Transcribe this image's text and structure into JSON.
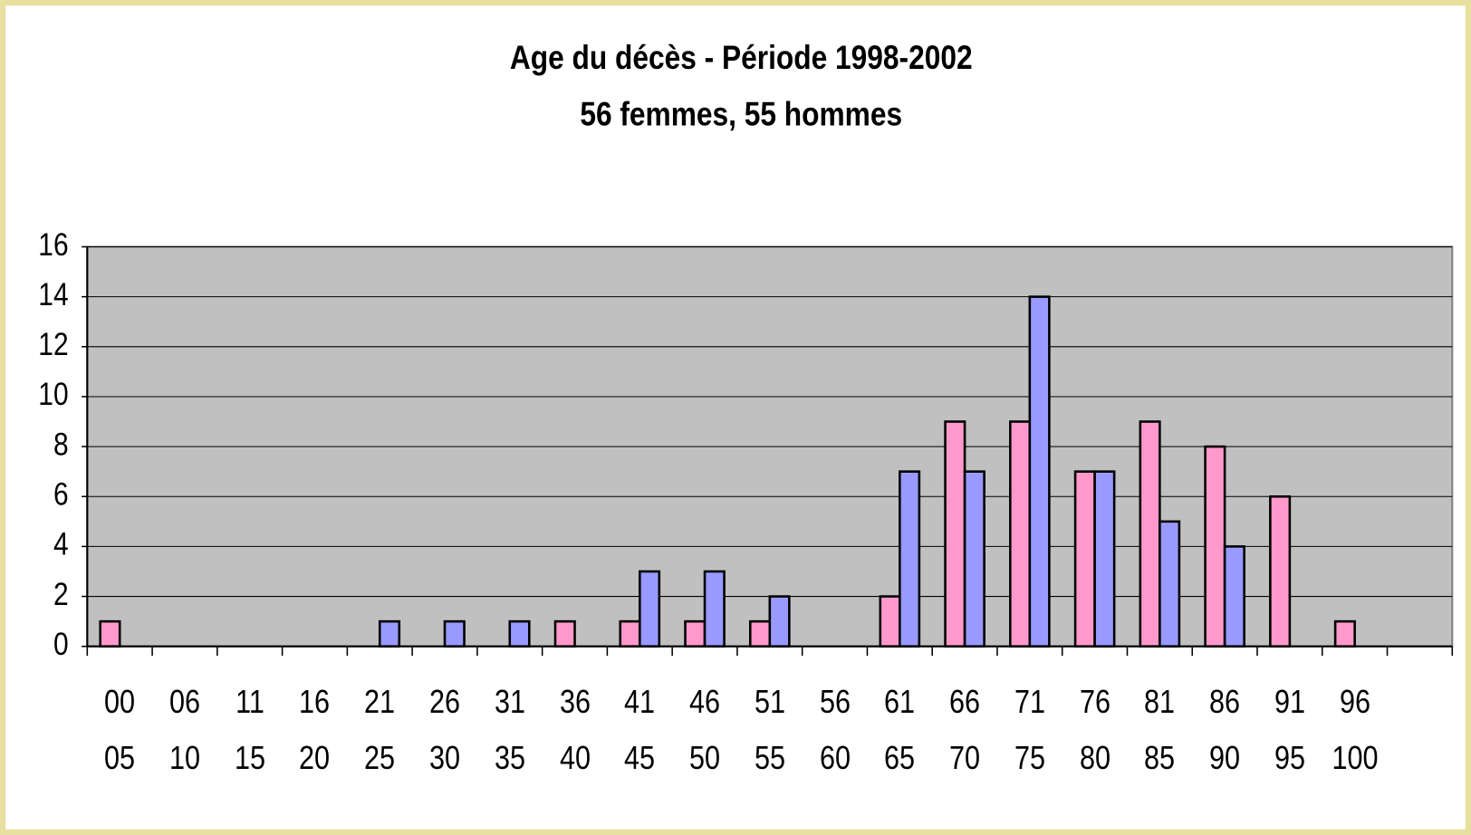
{
  "chart_data": {
    "type": "bar",
    "title": "Age du décès - Période 1998-2002",
    "subtitle": "56 femmes, 55 hommes",
    "categories": [
      "00\n05",
      "06\n10",
      "11\n15",
      "16\n20",
      "21\n25",
      "26\n30",
      "31\n35",
      "36\n40",
      "41\n45",
      "46\n50",
      "51\n55",
      "56\n60",
      "61\n65",
      "66\n70",
      "71\n75",
      "76\n80",
      "81\n85",
      "86\n90",
      "91\n95",
      "96\n100",
      null
    ],
    "series": [
      {
        "color": "#ff99cc",
        "values": [
          1,
          0,
          0,
          0,
          0,
          0,
          0,
          1,
          1,
          1,
          1,
          0,
          2,
          9,
          9,
          7,
          9,
          8,
          6,
          1,
          null
        ]
      },
      {
        "color": "#9999ff",
        "values": [
          0,
          0,
          0,
          0,
          1,
          1,
          1,
          0,
          3,
          3,
          2,
          0,
          7,
          7,
          14,
          7,
          5,
          4,
          0,
          0,
          null
        ]
      }
    ],
    "ylim": [
      0,
      16
    ],
    "yticks": [
      0,
      2,
      4,
      6,
      8,
      10,
      12,
      14,
      16
    ],
    "grid": true,
    "plot_background": "#c0c0c0"
  }
}
